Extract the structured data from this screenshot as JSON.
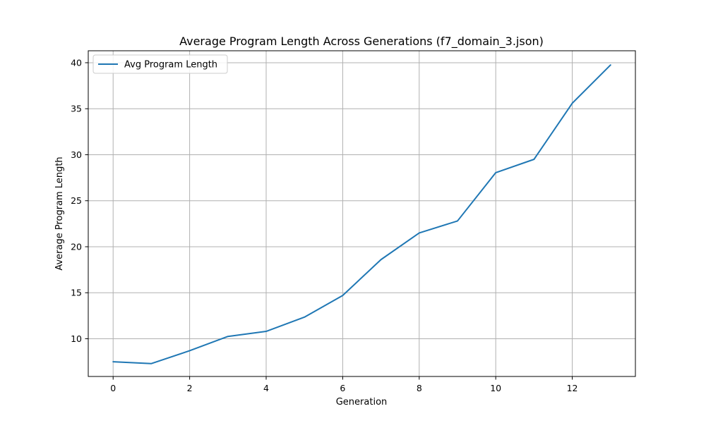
{
  "chart_data": {
    "type": "line",
    "title": "Average Program Length Across Generations (f7_domain_3.json)",
    "xlabel": "Generation",
    "ylabel": "Average Program Length",
    "xlim": [
      -0.65,
      13.65
    ],
    "ylim": [
      5.9,
      41.3
    ],
    "xticks": [
      0,
      2,
      4,
      6,
      8,
      10,
      12
    ],
    "yticks": [
      10,
      15,
      20,
      25,
      30,
      35,
      40
    ],
    "grid": true,
    "legend_position": "upper-left",
    "colors": {
      "series": "#1f77b4"
    },
    "x": [
      0,
      1,
      2,
      3,
      4,
      5,
      6,
      7,
      8,
      9,
      10,
      11,
      12,
      13
    ],
    "series": [
      {
        "name": "Avg Program Length",
        "values": [
          7.5,
          7.3,
          8.7,
          10.25,
          10.8,
          12.35,
          14.7,
          18.6,
          21.5,
          22.8,
          28.05,
          29.5,
          35.6,
          39.75
        ]
      }
    ]
  }
}
